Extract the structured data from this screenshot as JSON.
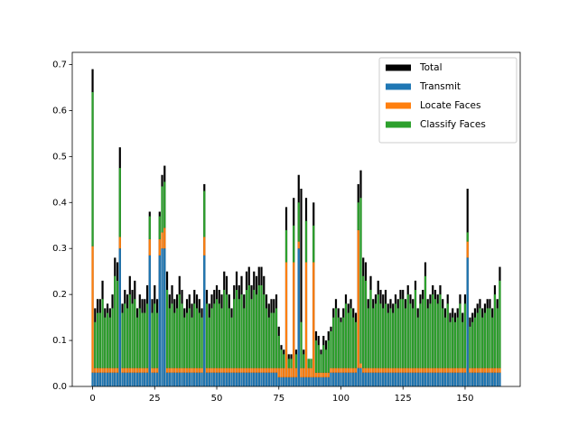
{
  "chart_data": {
    "type": "bar",
    "x": [
      0,
      1,
      2,
      3,
      4,
      5,
      6,
      7,
      8,
      9,
      10,
      11,
      12,
      13,
      14,
      15,
      16,
      17,
      18,
      19,
      20,
      21,
      22,
      23,
      24,
      25,
      26,
      27,
      28,
      29,
      30,
      31,
      32,
      33,
      34,
      35,
      36,
      37,
      38,
      39,
      40,
      41,
      42,
      43,
      44,
      45,
      46,
      47,
      48,
      49,
      50,
      51,
      52,
      53,
      54,
      55,
      56,
      57,
      58,
      59,
      60,
      61,
      62,
      63,
      64,
      65,
      66,
      67,
      68,
      69,
      70,
      71,
      72,
      73,
      74,
      75,
      76,
      77,
      78,
      79,
      80,
      81,
      82,
      83,
      84,
      85,
      86,
      87,
      88,
      89,
      90,
      91,
      92,
      93,
      94,
      95,
      96,
      97,
      98,
      99,
      100,
      101,
      102,
      103,
      104,
      105,
      106,
      107,
      108,
      109,
      110,
      111,
      112,
      113,
      114,
      115,
      116,
      117,
      118,
      119,
      120,
      121,
      122,
      123,
      124,
      125,
      126,
      127,
      128,
      129,
      130,
      131,
      132,
      133,
      134,
      135,
      136,
      137,
      138,
      139,
      140,
      141,
      142,
      143,
      144,
      145,
      146,
      147,
      148,
      149,
      150,
      151,
      152,
      153,
      154,
      155,
      156,
      157,
      158,
      159,
      160,
      161,
      162,
      163,
      164
    ],
    "series": [
      {
        "name": "Total",
        "color": "#000000",
        "stack": false,
        "values": [
          0.69,
          0.17,
          0.19,
          0.19,
          0.23,
          0.17,
          0.18,
          0.17,
          0.2,
          0.28,
          0.27,
          0.52,
          0.18,
          0.21,
          0.2,
          0.24,
          0.21,
          0.23,
          0.17,
          0.2,
          0.19,
          0.19,
          0.22,
          0.38,
          0.19,
          0.22,
          0.19,
          0.38,
          0.46,
          0.48,
          0.25,
          0.2,
          0.22,
          0.19,
          0.2,
          0.24,
          0.21,
          0.17,
          0.19,
          0.2,
          0.18,
          0.21,
          0.2,
          0.19,
          0.17,
          0.44,
          0.21,
          0.18,
          0.2,
          0.21,
          0.22,
          0.21,
          0.2,
          0.25,
          0.24,
          0.2,
          0.17,
          0.22,
          0.25,
          0.22,
          0.24,
          0.2,
          0.25,
          0.26,
          0.22,
          0.25,
          0.24,
          0.26,
          0.26,
          0.24,
          0.2,
          0.18,
          0.19,
          0.19,
          0.2,
          0.13,
          0.09,
          0.08,
          0.39,
          0.07,
          0.07,
          0.41,
          0.08,
          0.46,
          0.43,
          0.08,
          0.41,
          0.06,
          0.06,
          0.4,
          0.12,
          0.11,
          0.08,
          0.11,
          0.1,
          0.12,
          0.13,
          0.17,
          0.19,
          0.17,
          0.15,
          0.17,
          0.2,
          0.18,
          0.19,
          0.17,
          0.16,
          0.44,
          0.47,
          0.28,
          0.27,
          0.19,
          0.24,
          0.19,
          0.2,
          0.23,
          0.21,
          0.2,
          0.21,
          0.18,
          0.19,
          0.18,
          0.2,
          0.19,
          0.21,
          0.21,
          0.19,
          0.22,
          0.2,
          0.19,
          0.23,
          0.17,
          0.2,
          0.21,
          0.27,
          0.19,
          0.2,
          0.22,
          0.21,
          0.2,
          0.22,
          0.19,
          0.17,
          0.2,
          0.16,
          0.17,
          0.16,
          0.17,
          0.2,
          0.16,
          0.2,
          0.43,
          0.15,
          0.16,
          0.17,
          0.18,
          0.19,
          0.17,
          0.18,
          0.19,
          0.19,
          0.17,
          0.22,
          0.19,
          0.26
        ]
      },
      {
        "name": "Transmit",
        "color": "#1f77b4",
        "stack": true,
        "values": [
          0.03,
          0.03,
          0.03,
          0.03,
          0.03,
          0.03,
          0.03,
          0.03,
          0.03,
          0.03,
          0.03,
          0.3,
          0.03,
          0.03,
          0.03,
          0.03,
          0.03,
          0.03,
          0.03,
          0.03,
          0.03,
          0.03,
          0.03,
          0.285,
          0.03,
          0.03,
          0.03,
          0.285,
          0.3,
          0.3,
          0.03,
          0.03,
          0.03,
          0.03,
          0.03,
          0.03,
          0.03,
          0.03,
          0.03,
          0.03,
          0.03,
          0.03,
          0.03,
          0.03,
          0.03,
          0.285,
          0.03,
          0.03,
          0.03,
          0.03,
          0.03,
          0.03,
          0.03,
          0.03,
          0.03,
          0.03,
          0.03,
          0.03,
          0.03,
          0.03,
          0.03,
          0.03,
          0.03,
          0.03,
          0.03,
          0.03,
          0.03,
          0.03,
          0.03,
          0.03,
          0.03,
          0.03,
          0.03,
          0.03,
          0.03,
          0.02,
          0.02,
          0.02,
          0.02,
          0.02,
          0.02,
          0.02,
          0.02,
          0.3,
          0.02,
          0.02,
          0.02,
          0.02,
          0.02,
          0.02,
          0.02,
          0.02,
          0.02,
          0.02,
          0.02,
          0.02,
          0.03,
          0.03,
          0.03,
          0.03,
          0.03,
          0.03,
          0.03,
          0.03,
          0.03,
          0.03,
          0.03,
          0.04,
          0.04,
          0.03,
          0.03,
          0.03,
          0.03,
          0.03,
          0.03,
          0.03,
          0.03,
          0.03,
          0.03,
          0.03,
          0.03,
          0.03,
          0.03,
          0.03,
          0.03,
          0.03,
          0.03,
          0.03,
          0.03,
          0.03,
          0.03,
          0.03,
          0.03,
          0.03,
          0.03,
          0.03,
          0.03,
          0.03,
          0.03,
          0.03,
          0.03,
          0.03,
          0.03,
          0.03,
          0.03,
          0.03,
          0.03,
          0.03,
          0.03,
          0.03,
          0.03,
          0.28,
          0.03,
          0.03,
          0.03,
          0.03,
          0.03,
          0.03,
          0.03,
          0.03,
          0.03,
          0.03,
          0.03,
          0.03,
          0.03
        ]
      },
      {
        "name": "Locate Faces",
        "color": "#ff7f0e",
        "stack": true,
        "values": [
          0.275,
          0.01,
          0.01,
          0.01,
          0.01,
          0.01,
          0.01,
          0.01,
          0.01,
          0.01,
          0.01,
          0.025,
          0.01,
          0.01,
          0.01,
          0.01,
          0.01,
          0.01,
          0.01,
          0.01,
          0.01,
          0.01,
          0.01,
          0.035,
          0.01,
          0.01,
          0.01,
          0.035,
          0.035,
          0.045,
          0.01,
          0.01,
          0.01,
          0.01,
          0.01,
          0.01,
          0.01,
          0.01,
          0.01,
          0.01,
          0.01,
          0.01,
          0.01,
          0.01,
          0.01,
          0.04,
          0.01,
          0.01,
          0.01,
          0.01,
          0.01,
          0.01,
          0.01,
          0.01,
          0.01,
          0.01,
          0.01,
          0.01,
          0.01,
          0.01,
          0.01,
          0.01,
          0.01,
          0.01,
          0.01,
          0.01,
          0.01,
          0.01,
          0.01,
          0.01,
          0.01,
          0.01,
          0.01,
          0.01,
          0.01,
          0.02,
          0.02,
          0.02,
          0.25,
          0.02,
          0.02,
          0.25,
          0.02,
          0.015,
          0.02,
          0.02,
          0.25,
          0.02,
          0.02,
          0.25,
          0.01,
          0.01,
          0.01,
          0.01,
          0.01,
          0.01,
          0.01,
          0.01,
          0.01,
          0.01,
          0.01,
          0.01,
          0.01,
          0.01,
          0.01,
          0.01,
          0.01,
          0.3,
          0.01,
          0.01,
          0.01,
          0.01,
          0.01,
          0.01,
          0.01,
          0.01,
          0.01,
          0.01,
          0.01,
          0.01,
          0.01,
          0.01,
          0.01,
          0.01,
          0.01,
          0.01,
          0.01,
          0.01,
          0.01,
          0.01,
          0.01,
          0.01,
          0.01,
          0.01,
          0.01,
          0.01,
          0.01,
          0.01,
          0.01,
          0.01,
          0.01,
          0.01,
          0.01,
          0.01,
          0.01,
          0.01,
          0.01,
          0.01,
          0.01,
          0.01,
          0.01,
          0.035,
          0.01,
          0.01,
          0.01,
          0.01,
          0.01,
          0.01,
          0.01,
          0.01,
          0.01,
          0.01,
          0.01,
          0.01,
          0.01
        ]
      },
      {
        "name": "Classify Faces",
        "color": "#2ca02c",
        "stack": true,
        "values": [
          0.335,
          0.1,
          0.12,
          0.12,
          0.15,
          0.11,
          0.12,
          0.11,
          0.13,
          0.2,
          0.19,
          0.15,
          0.12,
          0.14,
          0.13,
          0.16,
          0.14,
          0.15,
          0.11,
          0.13,
          0.12,
          0.12,
          0.14,
          0.05,
          0.12,
          0.14,
          0.12,
          0.05,
          0.1,
          0.1,
          0.17,
          0.13,
          0.14,
          0.12,
          0.13,
          0.16,
          0.14,
          0.11,
          0.12,
          0.13,
          0.11,
          0.14,
          0.13,
          0.12,
          0.11,
          0.1,
          0.14,
          0.11,
          0.13,
          0.14,
          0.15,
          0.14,
          0.13,
          0.17,
          0.16,
          0.13,
          0.11,
          0.15,
          0.17,
          0.15,
          0.16,
          0.13,
          0.17,
          0.18,
          0.15,
          0.17,
          0.16,
          0.18,
          0.18,
          0.16,
          0.13,
          0.11,
          0.12,
          0.12,
          0.13,
          0.07,
          0.04,
          0.03,
          0.07,
          0.02,
          0.02,
          0.08,
          0.03,
          0.085,
          0.1,
          0.03,
          0.09,
          0.02,
          0.02,
          0.08,
          0.07,
          0.06,
          0.04,
          0.06,
          0.05,
          0.07,
          0.08,
          0.11,
          0.13,
          0.11,
          0.1,
          0.11,
          0.14,
          0.12,
          0.13,
          0.11,
          0.1,
          0.06,
          0.36,
          0.2,
          0.19,
          0.13,
          0.17,
          0.13,
          0.14,
          0.16,
          0.14,
          0.13,
          0.14,
          0.12,
          0.13,
          0.12,
          0.14,
          0.13,
          0.15,
          0.15,
          0.13,
          0.16,
          0.14,
          0.13,
          0.17,
          0.11,
          0.14,
          0.15,
          0.2,
          0.13,
          0.14,
          0.16,
          0.15,
          0.14,
          0.16,
          0.13,
          0.11,
          0.14,
          0.1,
          0.11,
          0.1,
          0.11,
          0.14,
          0.1,
          0.14,
          0.02,
          0.09,
          0.1,
          0.11,
          0.12,
          0.13,
          0.11,
          0.12,
          0.13,
          0.13,
          0.11,
          0.16,
          0.13,
          0.19
        ]
      }
    ],
    "xlim": [
      -8.2,
      172.2
    ],
    "xticks": [
      0,
      25,
      50,
      75,
      100,
      125,
      150
    ],
    "ylim": [
      0,
      0.7265
    ],
    "yticks": [
      {
        "value": 0,
        "label": "0.0"
      },
      0.1,
      0.2,
      0.3,
      0.4,
      0.5,
      0.6,
      0.7
    ],
    "legend": "upper right"
  }
}
